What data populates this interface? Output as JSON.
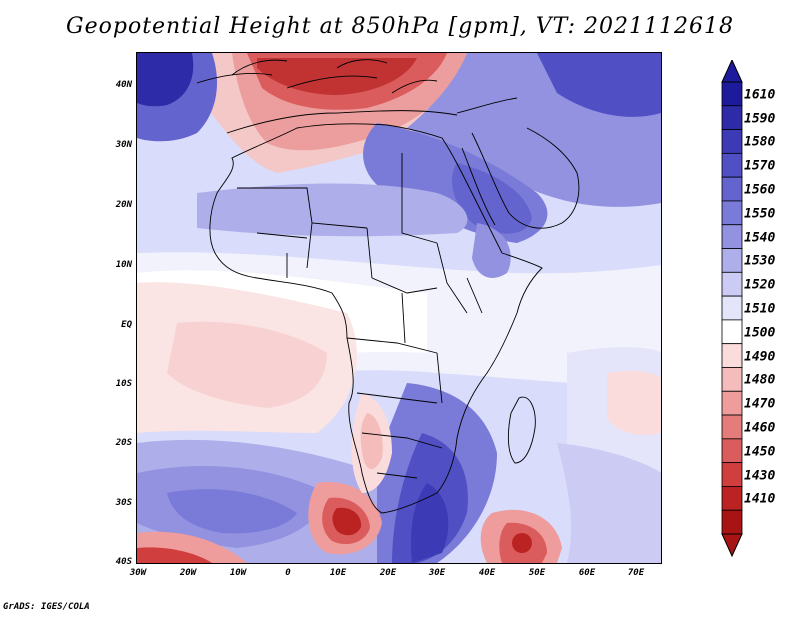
{
  "title": "Geopotential Height at 850hPa [gpm], VT: 2021112618",
  "footer": "GrADS: IGES/COLA",
  "map": {
    "lat_labels": [
      "40N",
      "30N",
      "20N",
      "10N",
      "EQ",
      "10S",
      "20S",
      "30S",
      "40S"
    ],
    "lon_labels": [
      "30W",
      "20W",
      "10W",
      "0",
      "10E",
      "20E",
      "30E",
      "40E",
      "50E",
      "60E",
      "70E"
    ]
  },
  "colorbar": {
    "labels": [
      "1610",
      "1590",
      "1580",
      "1570",
      "1560",
      "1550",
      "1540",
      "1530",
      "1520",
      "1510",
      "1500",
      "1490",
      "1480",
      "1470",
      "1460",
      "1450",
      "1430",
      "1410"
    ],
    "colors": [
      "#1d1a9c",
      "#2e2ba8",
      "#3d3ab6",
      "#5050c4",
      "#6464cf",
      "#7a7ad8",
      "#9292e1",
      "#aeaeea",
      "#cbcbf3",
      "#e4e4fa",
      "#ffffff",
      "#fbdcdc",
      "#f5bcbc",
      "#ee9c9c",
      "#e57c7c",
      "#db5c5c",
      "#d03e3e",
      "#bb2323",
      "#a81414"
    ]
  }
}
